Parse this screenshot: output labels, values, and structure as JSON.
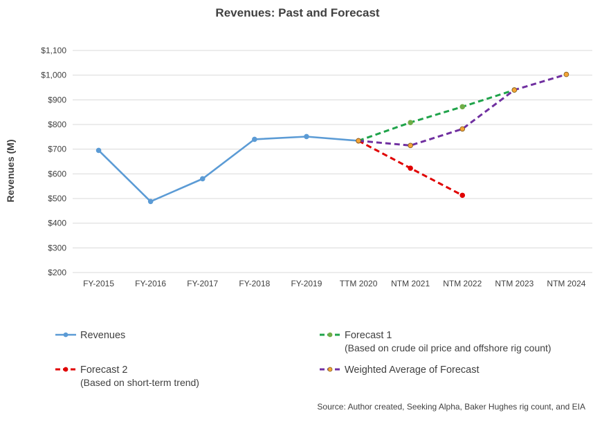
{
  "chart_data": {
    "type": "line",
    "title": "Revenues: Past and Forecast",
    "xlabel": "",
    "ylabel": "Revenues (M)",
    "categories": [
      "FY-2015",
      "FY-2016",
      "FY-2017",
      "FY-2018",
      "FY-2019",
      "TTM 2020",
      "NTM 2021",
      "NTM 2022",
      "NTM 2023",
      "NTM 2024"
    ],
    "ylim": [
      200,
      1100
    ],
    "yticks": [
      200,
      300,
      400,
      500,
      600,
      700,
      800,
      900,
      1000,
      1100
    ],
    "ytick_labels": [
      "$200",
      "$300",
      "$400",
      "$500",
      "$600",
      "$700",
      "$800",
      "$900",
      "$1,000",
      "$1,100"
    ],
    "grid": true,
    "legend_position": "bottom",
    "series": [
      {
        "name": "Revenues",
        "color": "#5b9bd5",
        "style": "solid",
        "marker_fill": "#5b9bd5",
        "values": [
          695,
          488,
          580,
          740,
          751,
          734,
          null,
          null,
          null,
          null
        ]
      },
      {
        "name": "Forecast 1",
        "subtitle": "(Based on crude oil price and offshore rig count)",
        "color": "#1fa34a",
        "style": "dashed",
        "marker_fill": "#70ad47",
        "values": [
          null,
          null,
          null,
          null,
          null,
          734,
          808,
          872,
          940,
          null
        ]
      },
      {
        "name": "Forecast 2",
        "subtitle": "(Based on short-term trend)",
        "color": "#e00000",
        "style": "dashed",
        "marker_fill": "#e00000",
        "values": [
          null,
          null,
          null,
          null,
          null,
          734,
          623,
          513,
          null,
          null
        ]
      },
      {
        "name": "Weighted Average of Forecast",
        "color": "#7030a0",
        "style": "dashed",
        "marker_fill": "#f4a536",
        "values": [
          null,
          null,
          null,
          null,
          null,
          734,
          715,
          782,
          940,
          1003
        ]
      }
    ],
    "source": "Source: Author created, Seeking Alpha, Baker Hughes rig count, and EIA"
  }
}
